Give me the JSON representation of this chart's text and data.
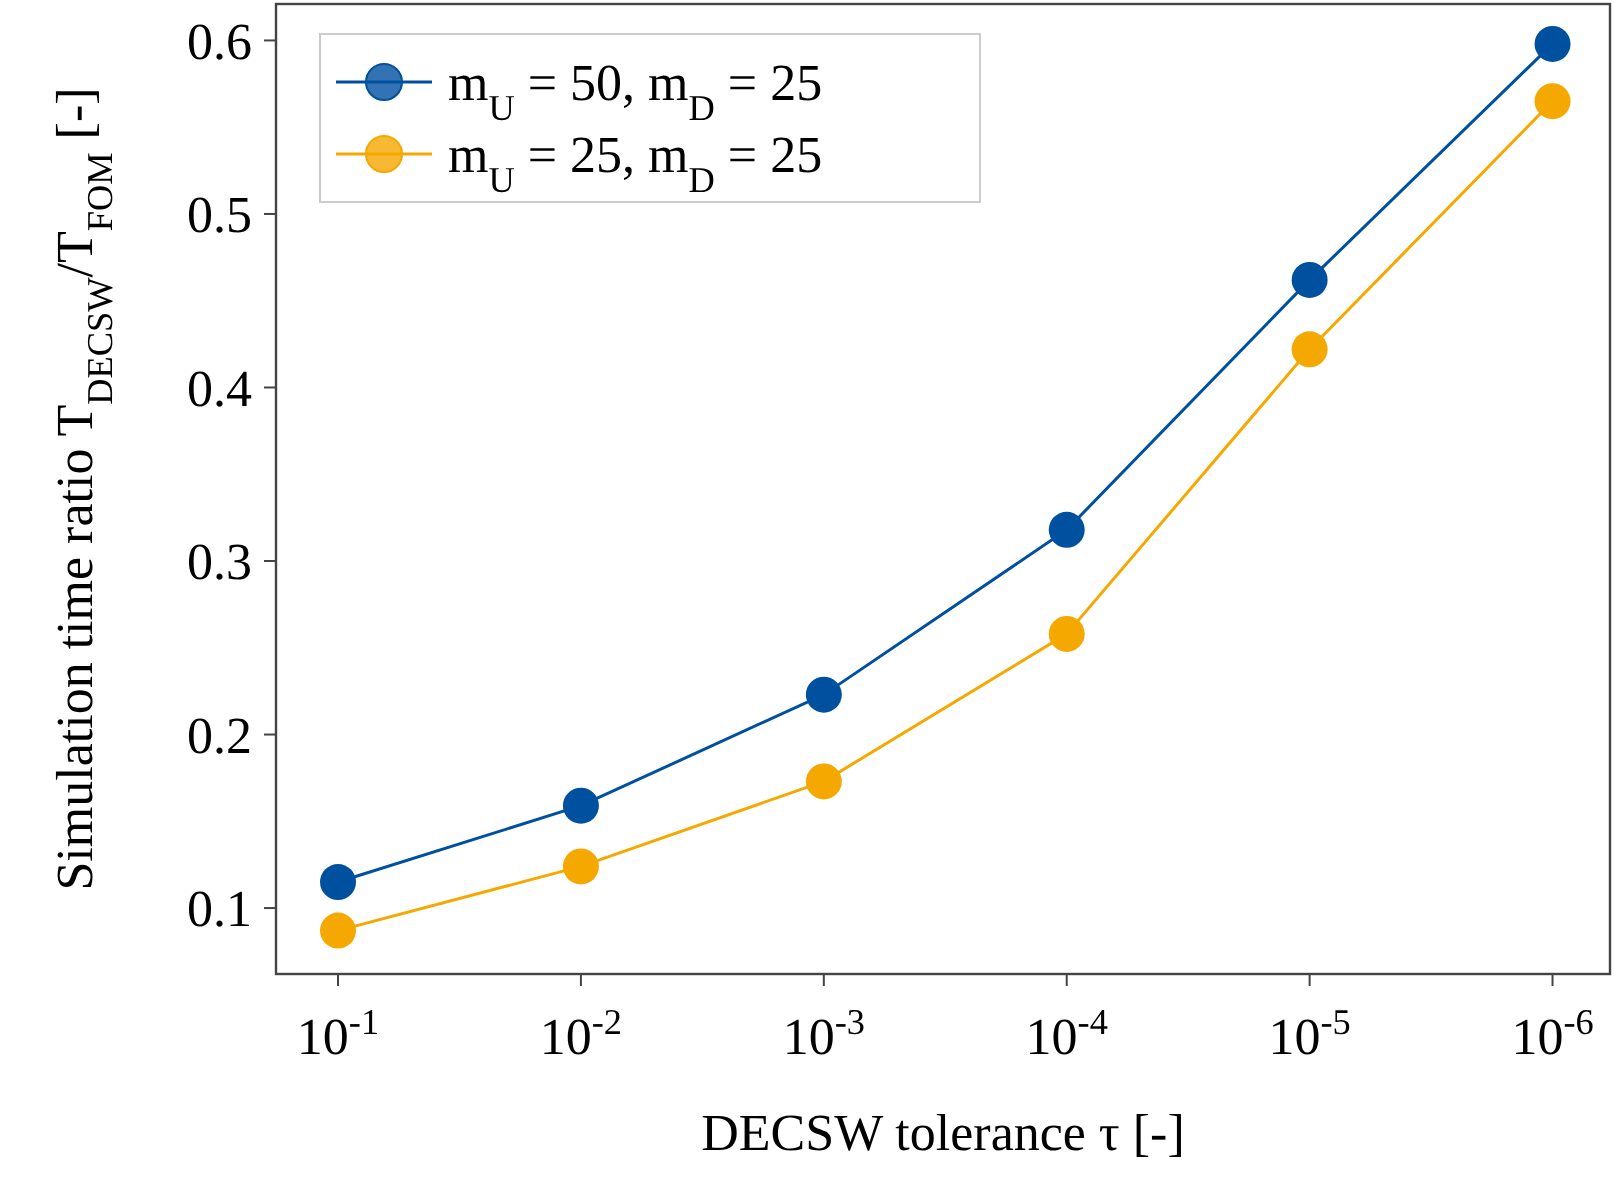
{
  "chart_data": {
    "type": "line",
    "xlabel": "DECSW tolerance τ [-]",
    "ylabel": "Simulation time ratio T$_{DECSW}$/T$_{FOM}$ [-]",
    "x": [
      0.1,
      0.01,
      0.001,
      0.0001,
      1e-05,
      1e-06
    ],
    "log": "x",
    "xlim": [
      0.18,
      5.8e-07
    ],
    "xticks": [
      {
        "value": 0.1,
        "label": "10$^{-1}$"
      },
      {
        "value": 0.01,
        "label": "10$^{-2}$"
      },
      {
        "value": 0.001,
        "label": "10$^{-3}$"
      },
      {
        "value": 0.0001,
        "label": "10$^{-4}$"
      },
      {
        "value": 1e-05,
        "label": "10$^{-5}$"
      },
      {
        "value": 1e-06,
        "label": "10$^{-6}$"
      }
    ],
    "ylim": [
      0.062,
      0.621
    ],
    "yticks": [
      0.1,
      0.2,
      0.3,
      0.4,
      0.5,
      0.6
    ],
    "series": [
      {
        "name": "m$_{U}$ = 50, m$_{D}$ = 25",
        "color": "#0050a0",
        "values": [
          0.115,
          0.159,
          0.223,
          0.318,
          0.462,
          0.598
        ]
      },
      {
        "name": "m$_{U}$ = 25, m$_{D}$ = 25",
        "color": "#f5a800",
        "values": [
          0.087,
          0.124,
          0.173,
          0.258,
          0.422,
          0.565
        ]
      }
    ],
    "marker": "circle",
    "line_style": "solid",
    "legend": "top left",
    "grid": false
  }
}
